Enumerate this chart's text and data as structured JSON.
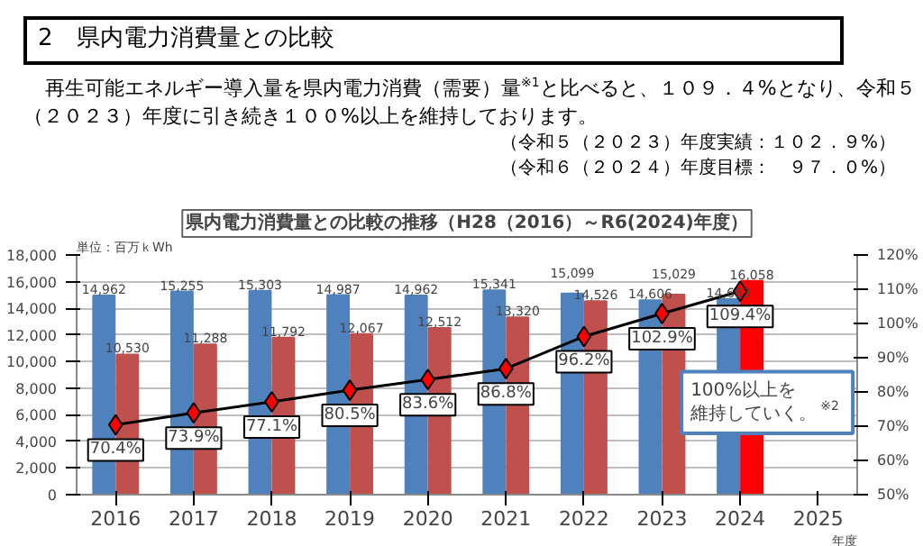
{
  "chart_data": {
    "type": "bar",
    "title": "県内電力消費量との比較の推移（H28（2016）～R6(2024)年度）",
    "ylabel": "単位：百万ｋWh",
    "xlabel": "年度",
    "annotations": [
      "2　県内電力消費量との比較",
      "再生可能エネルギー導入量を県内電力消費（需要）量$^{※1}$と比べると、１０９．４%となり、令和５（２０２３）年度に引き続き１００%以上を維持しております。",
      "（令和５（２０２３）年度実績：１０２．９%）",
      "（令和６（２０２４）年度目標：　９７．０%）",
      "100%以上を維持していく。$^{※2}$"
    ],
    "categories": [
      "2016",
      "2017",
      "2018",
      "2019",
      "2020",
      "2021",
      "2022",
      "2023",
      "2024",
      "2025"
    ],
    "series": [
      {
        "color": "#4f81bd",
        "values": [
          14962,
          15255,
          15303,
          14987,
          14962,
          15341,
          15099,
          14606,
          14683,
          null
        ],
        "value_labels": [
          "14,962",
          "15,255",
          "15,303",
          "14,987",
          "14,962",
          "15,341",
          "15,099",
          "14,606",
          "14,683",
          null
        ]
      },
      {
        "color": "#c0504d",
        "colors": [
          "#c0504d",
          "#c0504d",
          "#c0504d",
          "#c0504d",
          "#c0504d",
          "#c0504d",
          "#c0504d",
          "#c0504d",
          "#ff0000",
          null
        ],
        "values": [
          10530,
          11288,
          11792,
          12067,
          12512,
          13320,
          14526,
          15029,
          16058,
          null
        ],
        "value_labels": [
          "10,530",
          "11,288",
          "11,792",
          "12,067",
          "12,512",
          "13,320",
          "14,526",
          "15,029",
          "16,058",
          null
        ]
      },
      {
        "type": "line",
        "axis": "y2",
        "color": "#000000",
        "colors": [
          "#ff0000",
          "#ff0000",
          "#ff0000",
          "#ff0000",
          "#ff0000",
          "#ff0000",
          "#ff0000",
          "#ff0000",
          "#ff0000",
          null
        ],
        "marker": "diamond",
        "values": [
          70.4,
          73.9,
          77.1,
          80.5,
          83.6,
          86.8,
          96.2,
          102.9,
          109.4,
          null
        ],
        "value_labels": [
          "70.4%",
          "73.9%",
          "77.1%",
          "80.5%",
          "83.6%",
          "86.8%",
          "96.2%",
          "102.9%",
          "109.4%",
          null
        ]
      }
    ],
    "ylim": [
      0,
      18000
    ],
    "yticks": [
      {
        "value": 0,
        "label": "0"
      },
      {
        "value": 2000,
        "label": "2,000"
      },
      {
        "value": 4000,
        "label": "4,000"
      },
      {
        "value": 6000,
        "label": "6,000"
      },
      {
        "value": 8000,
        "label": "8,000"
      },
      {
        "value": 10000,
        "label": "10,000"
      },
      {
        "value": 12000,
        "label": "12,000"
      },
      {
        "value": 14000,
        "label": "14,000"
      },
      {
        "value": 16000,
        "label": "16,000"
      },
      {
        "value": 18000,
        "label": "18,000"
      }
    ],
    "y2lim": [
      50,
      120
    ],
    "y2ticks": [
      {
        "value": 50,
        "label": "50%"
      },
      {
        "value": 60,
        "label": "60%"
      },
      {
        "value": 70,
        "label": "70%"
      },
      {
        "value": 80,
        "label": "80%"
      },
      {
        "value": 90,
        "label": "90%"
      },
      {
        "value": 100,
        "label": "100%"
      },
      {
        "value": 110,
        "label": "110%"
      },
      {
        "value": 120,
        "label": "120%"
      }
    ],
    "grid": "y",
    "legend": false
  }
}
